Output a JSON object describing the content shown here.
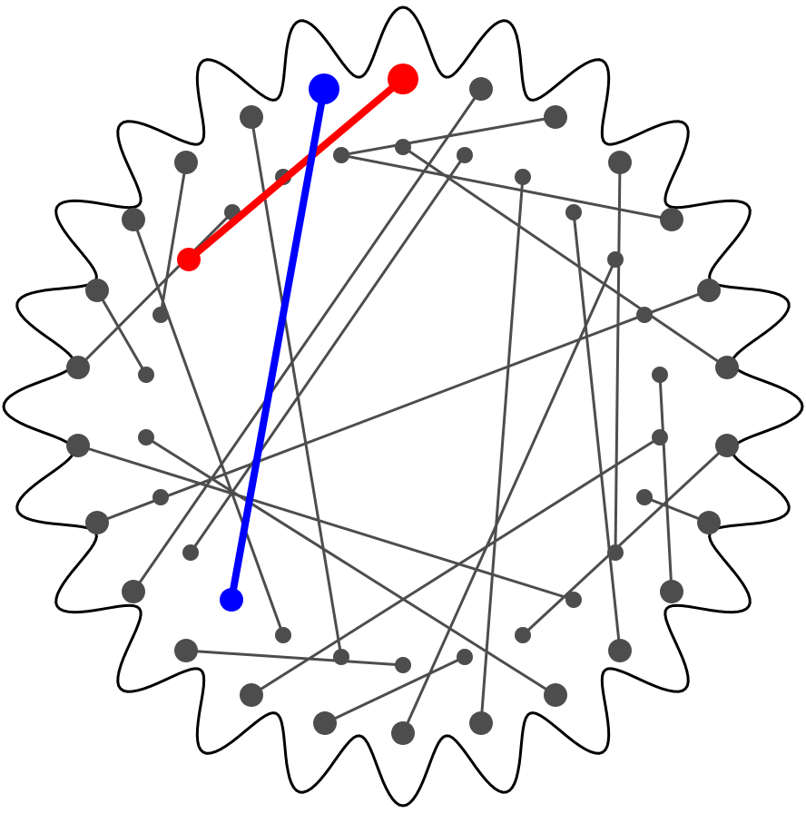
{
  "colors": {
    "background": "#ffffff",
    "outline": "#000000",
    "node": "#4d4d4d",
    "edge": "#4d4d4d",
    "highlight_red": "#ff0000",
    "highlight_blue": "#0000ff"
  },
  "outline_shape": "wavy-ring",
  "outline_lobes": 24,
  "node_count": {
    "outer_large": 24,
    "inner_small": 26
  },
  "edge_count": 25,
  "highlighted_edges": [
    {
      "color": "red"
    },
    {
      "color": "blue"
    }
  ]
}
